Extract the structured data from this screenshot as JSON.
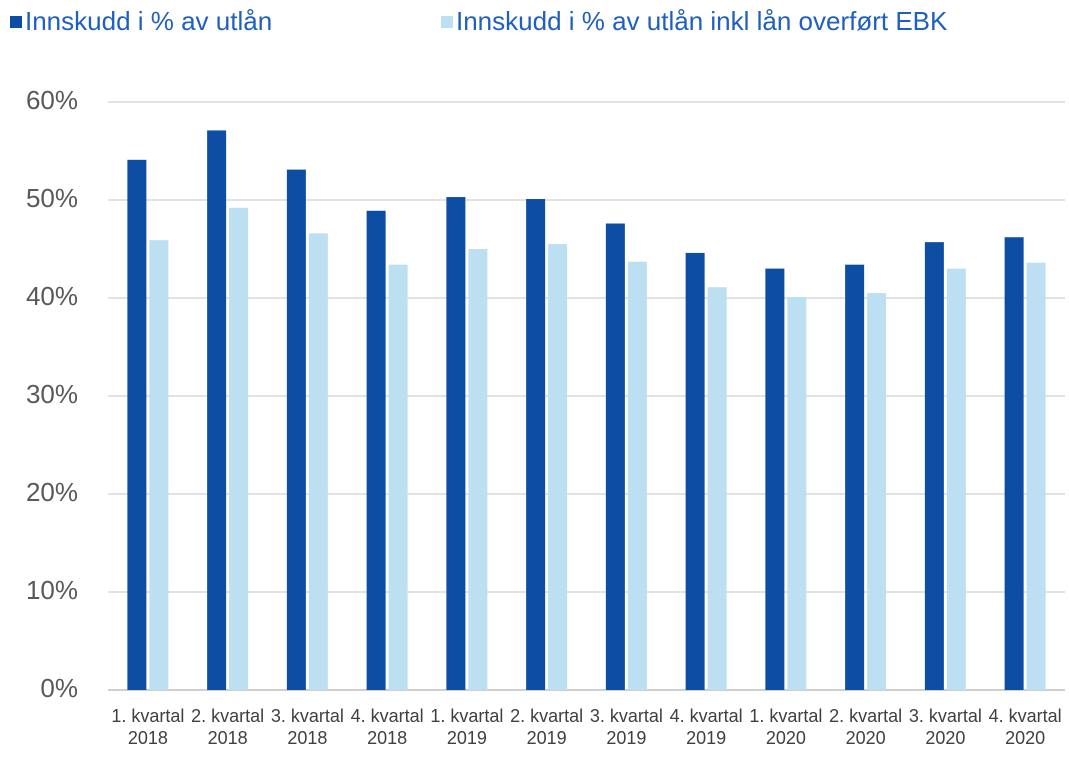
{
  "chart_data": {
    "type": "bar",
    "categories": [
      "1. kvartal 2018",
      "2. kvartal 2018",
      "3. kvartal 2018",
      "4. kvartal 2018",
      "1. kvartal 2019",
      "2. kvartal 2019",
      "3. kvartal 2019",
      "4. kvartal 2019",
      "1. kvartal 2020",
      "2. kvartal 2020",
      "3. kvartal 2020",
      "4. kvartal 2020"
    ],
    "series": [
      {
        "name": "Innskudd i % av utlån",
        "color": "#0e4da4",
        "values": [
          54.1,
          57.1,
          53.1,
          48.9,
          50.3,
          50.1,
          47.6,
          44.6,
          43.0,
          43.4,
          45.7,
          46.2
        ]
      },
      {
        "name": "Innskudd i % av utlån inkl lån overført EBK",
        "color": "#bcdff1",
        "values": [
          45.9,
          49.2,
          46.6,
          43.4,
          45.0,
          45.5,
          43.7,
          41.1,
          40.1,
          40.5,
          43.0,
          43.6
        ]
      }
    ],
    "ylim": [
      0,
      60
    ],
    "yticks": [
      {
        "value": 0,
        "label": "0%"
      },
      {
        "value": 10,
        "label": "10%"
      },
      {
        "value": 20,
        "label": "20%"
      },
      {
        "value": 30,
        "label": "30%"
      },
      {
        "value": 40,
        "label": "40%"
      },
      {
        "value": 50,
        "label": "50%"
      },
      {
        "value": 60,
        "label": "60%"
      }
    ],
    "grid": true,
    "legend": "top-left"
  }
}
